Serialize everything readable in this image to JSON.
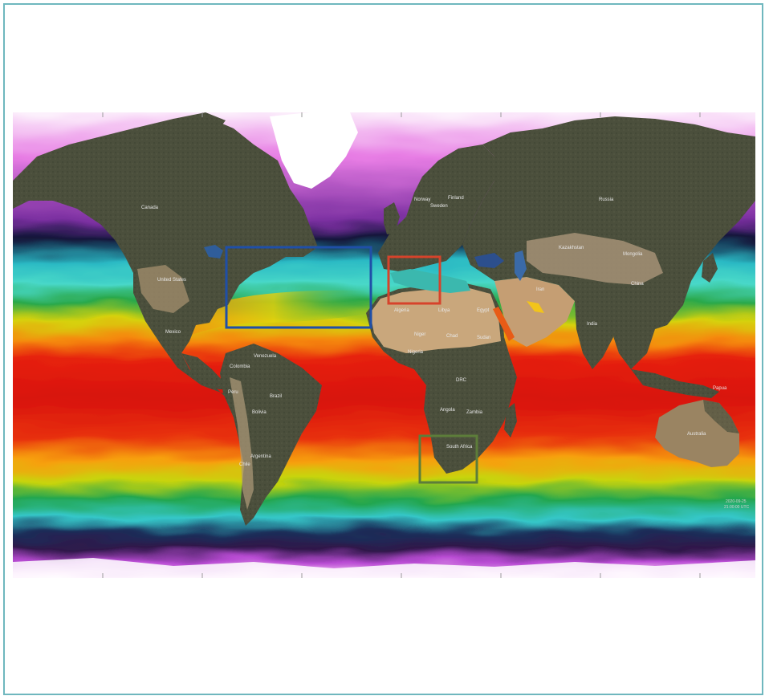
{
  "map": {
    "colors": {
      "land": "#4b4f3c",
      "desert": "#c9a77c",
      "ice": "#ffffff",
      "frame": "#6fb7be",
      "box_north_atlantic": "#1f4fa8",
      "box_mediterranean": "#d6432b",
      "box_south_africa": "#5d7d3a"
    },
    "country_labels": [
      "Canada",
      "United States",
      "Mexico",
      "Venezuela",
      "Colombia",
      "Brazil",
      "Peru",
      "Bolivia",
      "Argentina",
      "Chile",
      "Finland",
      "Sweden",
      "Norway",
      "Russia",
      "Kazakhstan",
      "Algeria",
      "Libya",
      "Egypt",
      "Niger",
      "Chad",
      "Sudan",
      "Nigeria",
      "DRC",
      "Angola",
      "Zambia",
      "South Africa",
      "Iran",
      "India",
      "China",
      "Mongolia",
      "Australia",
      "Papua"
    ],
    "timestamp": [
      "2020-09-25",
      "21:00:00 UTC"
    ]
  }
}
